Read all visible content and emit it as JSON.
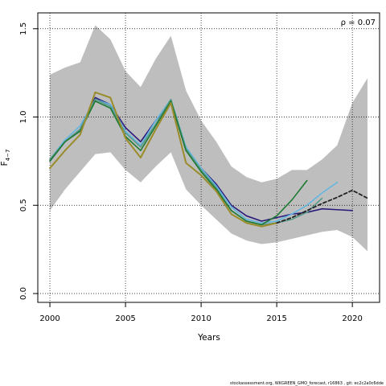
{
  "chart_data": {
    "type": "line",
    "annotation": "ρ = 0.07",
    "xlabel": "Years",
    "ylabel": "F",
    "ylabel_subscript": "4−7",
    "xlim": [
      1999.2,
      2021.8
    ],
    "ylim": [
      -0.05,
      1.59
    ],
    "x_ticks": [
      2000,
      2005,
      2010,
      2015,
      2020
    ],
    "x_tick_labels": [
      "2000",
      "2005",
      "2010",
      "2015",
      "2020"
    ],
    "y_ticks": [
      0.0,
      0.5,
      1.0,
      1.5
    ],
    "y_tick_labels": [
      "0.0",
      "0.5",
      "1.0",
      "1.5"
    ],
    "grid": true,
    "confidence_band": {
      "color": "#bebebe",
      "x": [
        2000,
        2001,
        2002,
        2003,
        2004,
        2005,
        2006,
        2007,
        2008,
        2009,
        2010,
        2011,
        2012,
        2013,
        2014,
        2015,
        2016,
        2017,
        2018,
        2019,
        2020,
        2021
      ],
      "upper": [
        1.24,
        1.28,
        1.31,
        1.52,
        1.44,
        1.26,
        1.17,
        1.33,
        1.46,
        1.15,
        0.98,
        0.86,
        0.72,
        0.66,
        0.63,
        0.65,
        0.7,
        0.7,
        0.76,
        0.84,
        1.08,
        1.22
      ],
      "lower": [
        0.47,
        0.59,
        0.69,
        0.79,
        0.8,
        0.7,
        0.63,
        0.72,
        0.8,
        0.59,
        0.5,
        0.42,
        0.34,
        0.3,
        0.28,
        0.29,
        0.31,
        0.33,
        0.35,
        0.36,
        0.32,
        0.24
      ]
    },
    "series": [
      {
        "color": "#2b1b7a",
        "width": 1.6,
        "dash": "",
        "x": [
          2000,
          2001,
          2002,
          2003,
          2004,
          2005,
          2006,
          2007,
          2008,
          2009,
          2010,
          2011,
          2012,
          2013,
          2014,
          2015,
          2016,
          2017,
          2018,
          2019,
          2020
        ],
        "values": [
          0.75,
          0.86,
          0.93,
          1.11,
          1.07,
          0.94,
          0.86,
          0.98,
          1.09,
          0.81,
          0.71,
          0.62,
          0.5,
          0.44,
          0.41,
          0.43,
          0.45,
          0.46,
          0.48,
          0.475,
          0.47
        ]
      },
      {
        "color": "#63b7e0",
        "width": 1.6,
        "dash": "",
        "x": [
          2000,
          2001,
          2002,
          2003,
          2004,
          2005,
          2006,
          2007,
          2008,
          2009,
          2010,
          2011,
          2012,
          2013,
          2014,
          2015,
          2016,
          2017,
          2018,
          2019
        ],
        "values": [
          0.76,
          0.87,
          0.95,
          1.1,
          1.07,
          0.92,
          0.84,
          0.98,
          1.1,
          0.83,
          0.71,
          0.61,
          0.49,
          0.42,
          0.4,
          0.41,
          0.45,
          0.5,
          0.57,
          0.63
        ]
      },
      {
        "color": "#5a9a8a",
        "width": 1.6,
        "dash": "",
        "x": [
          2000,
          2001,
          2002,
          2003,
          2004,
          2005,
          2006,
          2007,
          2008,
          2009,
          2010,
          2011,
          2012,
          2013,
          2014,
          2015,
          2016,
          2017,
          2018
        ],
        "values": [
          0.76,
          0.86,
          0.93,
          1.1,
          1.06,
          0.91,
          0.83,
          0.96,
          1.1,
          0.82,
          0.7,
          0.6,
          0.47,
          0.41,
          0.39,
          0.4,
          0.42,
          0.46,
          0.54
        ]
      },
      {
        "color": "#1d7a32",
        "width": 1.6,
        "dash": "",
        "x": [
          2000,
          2001,
          2002,
          2003,
          2004,
          2005,
          2006,
          2007,
          2008,
          2009,
          2010,
          2011,
          2012,
          2013,
          2014,
          2015,
          2016,
          2017
        ],
        "values": [
          0.75,
          0.86,
          0.92,
          1.09,
          1.05,
          0.89,
          0.81,
          0.95,
          1.09,
          0.81,
          0.69,
          0.59,
          0.47,
          0.41,
          0.39,
          0.44,
          0.53,
          0.64
        ]
      },
      {
        "color": "#9a8c2a",
        "width": 2.0,
        "dash": "",
        "x": [
          2000,
          2001,
          2002,
          2003,
          2004,
          2005,
          2006,
          2007,
          2008,
          2009,
          2010,
          2011,
          2012,
          2013,
          2014,
          2015
        ],
        "values": [
          0.71,
          0.81,
          0.9,
          1.14,
          1.11,
          0.88,
          0.77,
          0.93,
          1.08,
          0.74,
          0.67,
          0.58,
          0.45,
          0.4,
          0.38,
          0.4
        ]
      },
      {
        "color": "#222222",
        "width": 1.8,
        "dash": "4 3",
        "x": [
          2015,
          2016,
          2017,
          2018,
          2019,
          2020,
          2021
        ],
        "values": [
          0.4,
          0.43,
          0.47,
          0.51,
          0.545,
          0.585,
          0.54
        ]
      }
    ]
  },
  "footer": "stockassessment.org, WKGREEN_GMO_forecast, r16863 , git: ec2c2a0c6dde"
}
